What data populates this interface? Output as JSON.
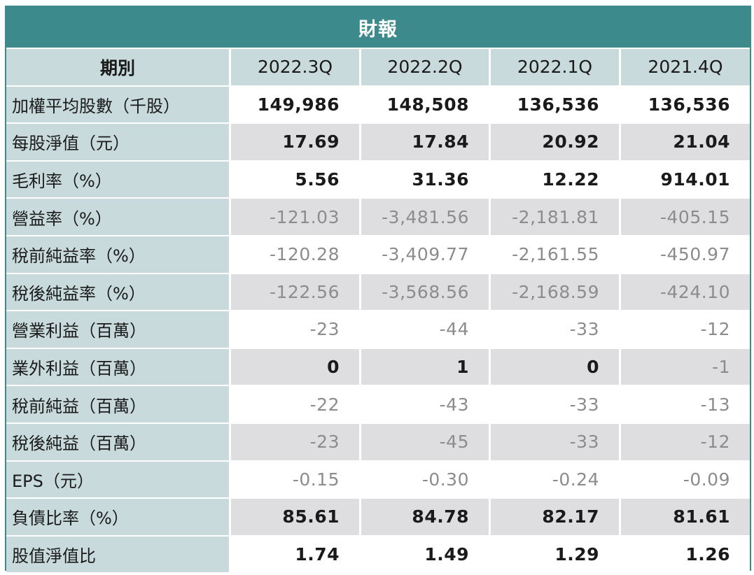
{
  "title": "財報",
  "header": {
    "label": "期別",
    "periods": [
      "2022.3Q",
      "2022.2Q",
      "2022.1Q",
      "2021.4Q"
    ]
  },
  "rows": [
    {
      "label": "加權平均股數（千股）",
      "values": [
        "149,986",
        "148,508",
        "136,536",
        "136,536"
      ],
      "shaded": false,
      "neg": [
        false,
        false,
        false,
        false
      ]
    },
    {
      "label": "每股淨值（元）",
      "values": [
        "17.69",
        "17.84",
        "20.92",
        "21.04"
      ],
      "shaded": true,
      "neg": [
        false,
        false,
        false,
        false
      ]
    },
    {
      "label": "毛利率（%）",
      "values": [
        "5.56",
        "31.36",
        "12.22",
        "914.01"
      ],
      "shaded": false,
      "neg": [
        false,
        false,
        false,
        false
      ]
    },
    {
      "label": "營益率（%）",
      "values": [
        "-121.03",
        "-3,481.56",
        "-2,181.81",
        "-405.15"
      ],
      "shaded": true,
      "neg": [
        true,
        true,
        true,
        true
      ]
    },
    {
      "label": "稅前純益率（%）",
      "values": [
        "-120.28",
        "-3,409.77",
        "-2,161.55",
        "-450.97"
      ],
      "shaded": false,
      "neg": [
        true,
        true,
        true,
        true
      ]
    },
    {
      "label": "稅後純益率（%）",
      "values": [
        "-122.56",
        "-3,568.56",
        "-2,168.59",
        "-424.10"
      ],
      "shaded": true,
      "neg": [
        true,
        true,
        true,
        true
      ]
    },
    {
      "label": "營業利益（百萬）",
      "values": [
        "-23",
        "-44",
        "-33",
        "-12"
      ],
      "shaded": false,
      "neg": [
        true,
        true,
        true,
        true
      ]
    },
    {
      "label": "業外利益（百萬）",
      "values": [
        "0",
        "1",
        "0",
        "-1"
      ],
      "shaded": true,
      "neg": [
        false,
        false,
        false,
        true
      ]
    },
    {
      "label": "稅前純益（百萬）",
      "values": [
        "-22",
        "-43",
        "-33",
        "-13"
      ],
      "shaded": false,
      "neg": [
        true,
        true,
        true,
        true
      ]
    },
    {
      "label": "稅後純益（百萬）",
      "values": [
        "-23",
        "-45",
        "-33",
        "-12"
      ],
      "shaded": true,
      "neg": [
        true,
        true,
        true,
        true
      ]
    },
    {
      "label": "EPS（元）",
      "values": [
        "-0.15",
        "-0.30",
        "-0.24",
        "-0.09"
      ],
      "shaded": false,
      "neg": [
        true,
        true,
        true,
        true
      ]
    },
    {
      "label": "負債比率（%）",
      "values": [
        "85.61",
        "84.78",
        "82.17",
        "81.61"
      ],
      "shaded": true,
      "neg": [
        false,
        false,
        false,
        false
      ]
    },
    {
      "label": "股值淨值比",
      "values": [
        "1.74",
        "1.49",
        "1.29",
        "1.26"
      ],
      "shaded": false,
      "neg": [
        false,
        false,
        false,
        false
      ]
    }
  ],
  "colors": {
    "title_bg": "#3d8a8c",
    "label_bg": "#c8dadb",
    "shade_bg": "#dedee0",
    "negative_text": "#8c8c8c"
  }
}
